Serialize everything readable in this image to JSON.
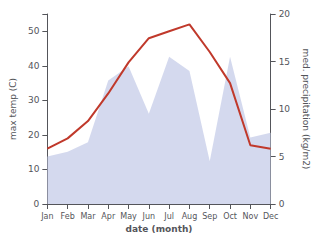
{
  "chart_data": {
    "type": "line",
    "xlabel": "date (month)",
    "ylabel": "max temp (C)",
    "y2label": "med. precipitation (kg/m2)",
    "categories": [
      "Jan",
      "Feb",
      "Mar",
      "Apr",
      "May",
      "Jun",
      "Jul",
      "Aug",
      "Sep",
      "Oct",
      "Nov",
      "Dec"
    ],
    "series": [
      {
        "type": "area",
        "color": "#c5cce8",
        "axis": "y2",
        "values": [
          5.0,
          5.5,
          6.5,
          13.0,
          14.5,
          9.5,
          15.5,
          14.0,
          4.5,
          15.5,
          7.0,
          7.5
        ]
      },
      {
        "type": "line",
        "color": "#c0392b",
        "values": [
          16,
          19,
          24,
          32,
          41,
          48,
          50,
          52,
          44,
          35,
          17,
          16
        ]
      }
    ],
    "ylim": [
      0,
      55
    ],
    "yticks": [
      0,
      10,
      20,
      30,
      40,
      50
    ],
    "y2lim": [
      0,
      20
    ],
    "y2ticks": [
      0,
      5,
      10,
      15,
      20
    ],
    "grid": false
  }
}
